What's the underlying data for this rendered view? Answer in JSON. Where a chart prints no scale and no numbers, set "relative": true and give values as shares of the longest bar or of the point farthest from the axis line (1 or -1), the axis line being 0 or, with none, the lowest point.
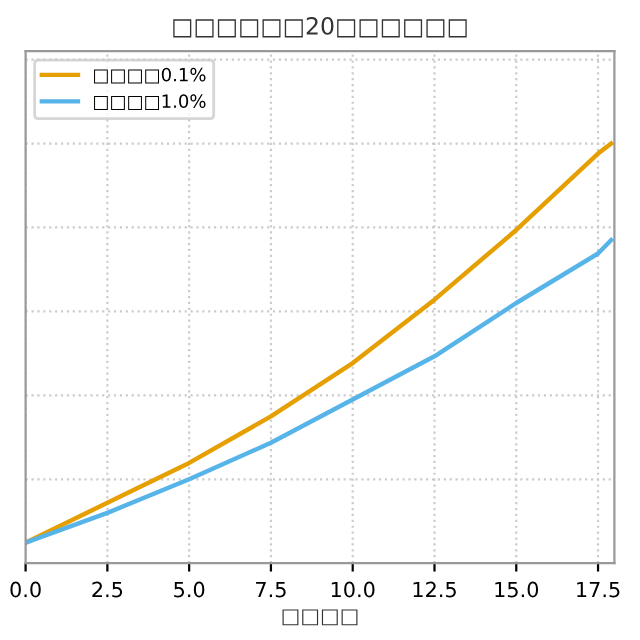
{
  "chart_data": {
    "type": "line",
    "title": "□□□□□□20□□□□□□",
    "xlabel": "□□□□",
    "relative": true,
    "x": [
      0,
      2.5,
      5,
      7.5,
      10,
      12.5,
      15,
      17.5,
      17.9
    ],
    "series": [
      {
        "name": "□□□□0.1%",
        "color": "#e69f00",
        "values": [
          0.049,
          0.144,
          0.239,
          0.35,
          0.477,
          0.628,
          0.794,
          0.976,
          1.0
        ]
      },
      {
        "name": "□□□□1.0%",
        "color": "#56b4e9",
        "values": [
          0.049,
          0.12,
          0.2,
          0.287,
          0.39,
          0.493,
          0.62,
          0.738,
          0.77
        ]
      }
    ],
    "xlim": [
      0,
      18
    ],
    "xticks": [
      {
        "value": 0,
        "label": "0.0"
      },
      2.5,
      {
        "value": 5,
        "label": "5.0"
      },
      7.5,
      {
        "value": 10,
        "label": "10.0"
      },
      12.5,
      {
        "value": 15,
        "label": "15.0"
      },
      17.5
    ],
    "tick_labels": "x",
    "grid": true,
    "legend": "top left",
    "line_style": "solid"
  }
}
